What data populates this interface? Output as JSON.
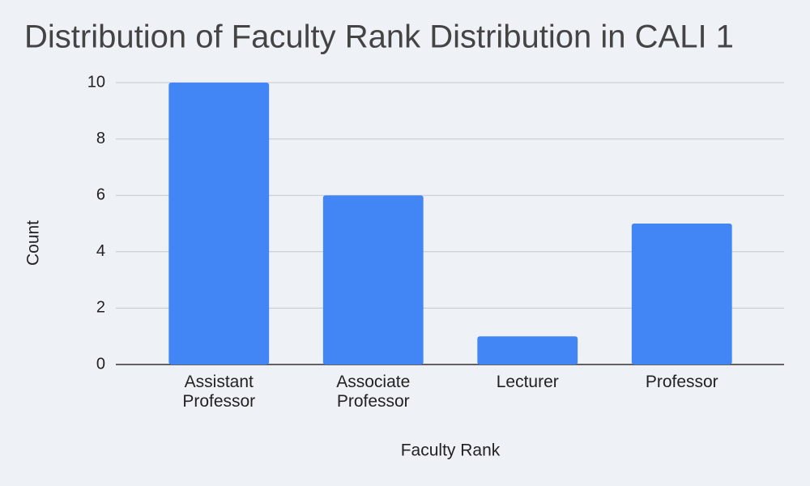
{
  "chart_data": {
    "type": "bar",
    "title": "Distribution of Faculty Rank Distribution in CALI 1",
    "categories": [
      "Assistant Professor",
      "Associate Professor",
      "Lecturer",
      "Professor"
    ],
    "values": [
      10,
      6,
      1,
      5
    ],
    "color": "#4285f4",
    "x_label": "Faculty Rank",
    "y_label": "Count",
    "ylim": [
      0,
      10
    ],
    "yticks": [
      0,
      2,
      4,
      6,
      8,
      10
    ],
    "grid": true
  }
}
